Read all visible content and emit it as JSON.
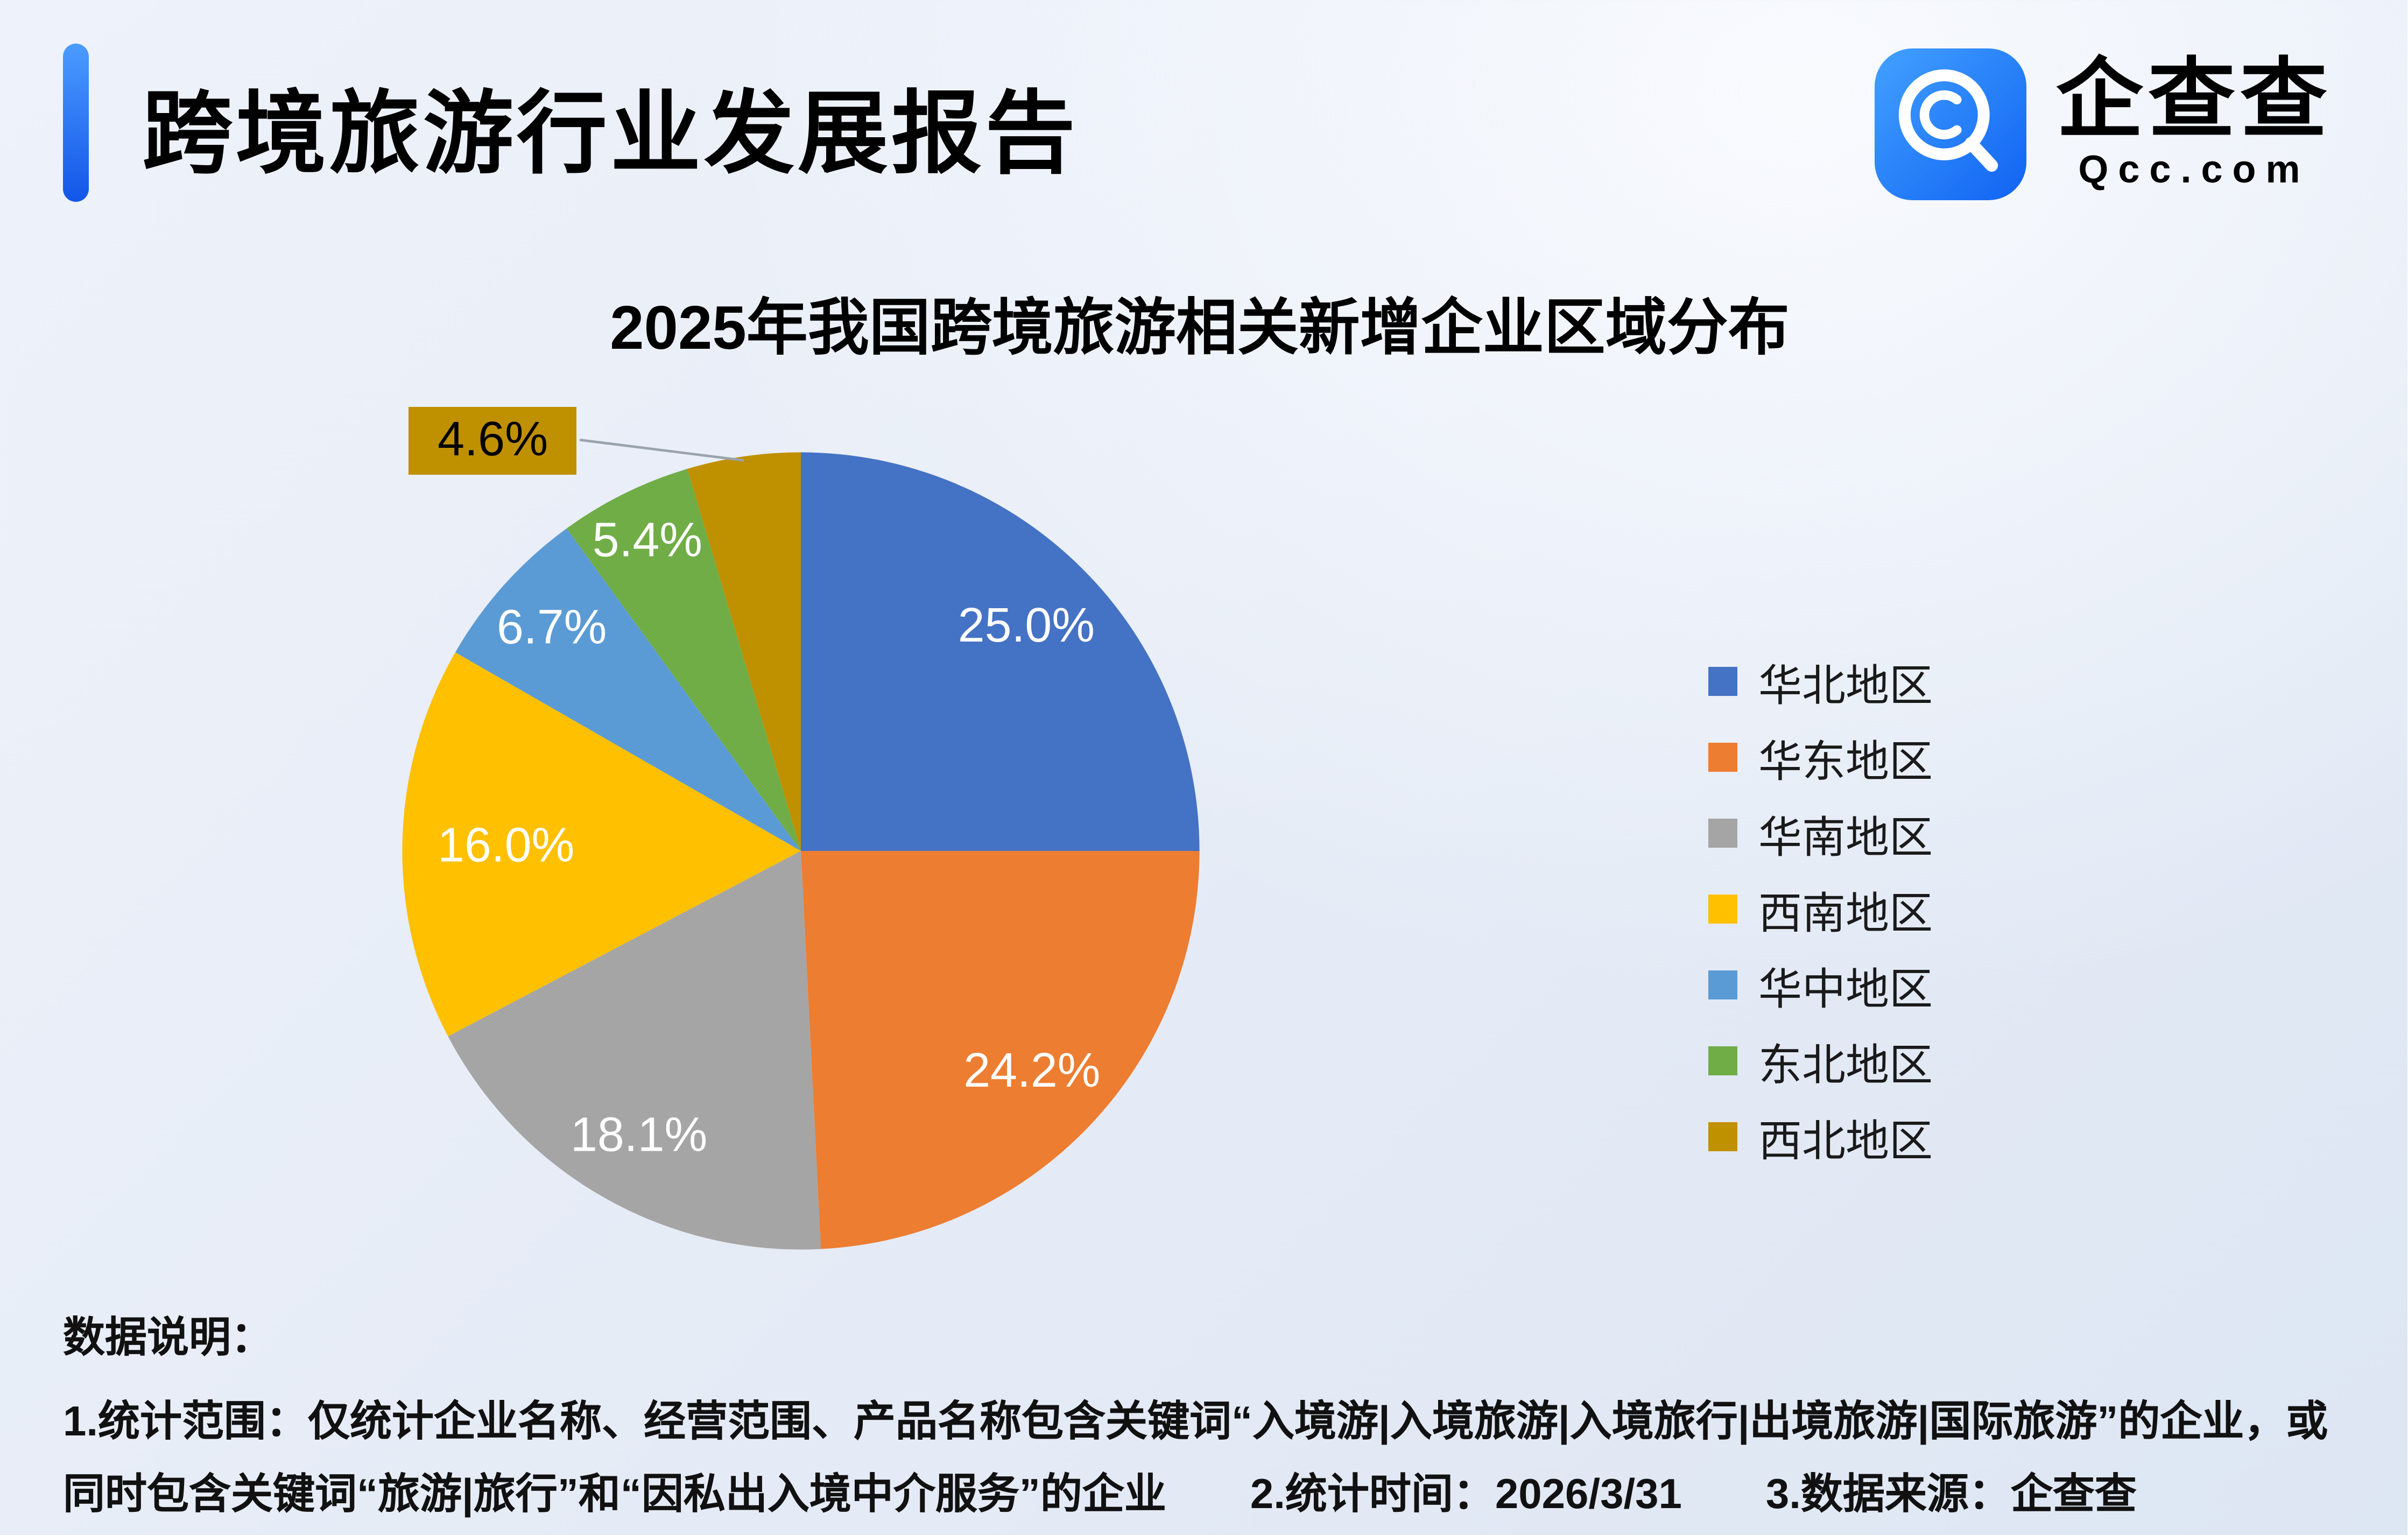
{
  "page": {
    "report_title": "跨境旅游行业发展报告",
    "logo": {
      "brand": "企查查",
      "domain": "Qcc.com",
      "icon": "qcc-logo-icon",
      "icon_color_top": "#43a1ff",
      "icon_color_bottom": "#1063f2"
    }
  },
  "chart_data": {
    "type": "pie",
    "title": "2025年我国跨境旅游相关新增企业区域分布",
    "unit": "%",
    "start_angle_deg": 0,
    "direction": "clockwise",
    "legend_position": "right",
    "slices": [
      {
        "label": "华北地区",
        "value": 25.0,
        "color": "#4472C4",
        "label_color": "#ffffff",
        "label_r": 0.8
      },
      {
        "label": "华东地区",
        "value": 24.2,
        "color": "#ED7D31",
        "label_color": "#ffffff",
        "label_r": 0.8
      },
      {
        "label": "华南地区",
        "value": 18.1,
        "color": "#A5A5A5",
        "label_color": "#ffffff",
        "label_r": 0.82
      },
      {
        "label": "西南地区",
        "value": 16.0,
        "color": "#FFC000",
        "label_color": "#ffffff",
        "label_r": 0.74
      },
      {
        "label": "华中地区",
        "value": 6.7,
        "color": "#5B9BD5",
        "label_color": "#ffffff",
        "label_r": 0.84
      },
      {
        "label": "东北地区",
        "value": 5.4,
        "color": "#70AD47",
        "label_color": "#ffffff",
        "label_r": 0.87
      },
      {
        "label": "西北地区",
        "value": 4.6,
        "color": "#BF9000",
        "label_color": "#000000",
        "callout": true
      }
    ]
  },
  "footnote": {
    "heading": "数据说明：",
    "line1": "1.统计范围：仅统计企业名称、经营范围、产品名称包含关键词“入境游|入境旅游|入境旅行|出境旅游|国际旅游”的企业，或",
    "line2": "同时包含关键词“旅游|旅行”和“因私出入境中介服务”的企业　　2.统计时间：2026/3/31　　3.数据来源：企查查"
  }
}
